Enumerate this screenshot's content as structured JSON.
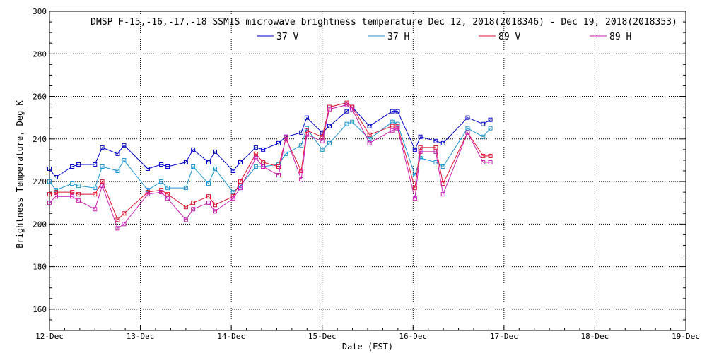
{
  "chart_data": {
    "type": "line",
    "title": "DMSP F-15,-16,-17,-18 SSMIS microwave brightness temperature Dec 12, 2018(2018346) - Dec 19, 2018(2018353)",
    "xlabel": "Date (EST)",
    "ylabel": "Brightness Temperature, Deg K",
    "x_ticks": [
      "12-Dec",
      "13-Dec",
      "14-Dec",
      "15-Dec",
      "16-Dec",
      "17-Dec",
      "18-Dec",
      "19-Dec"
    ],
    "xlim": [
      0,
      7
    ],
    "ylim": [
      150,
      300
    ],
    "y_ticks": [
      160,
      180,
      200,
      220,
      240,
      260,
      280,
      300
    ],
    "grid": true,
    "legend_position": "top-center",
    "series": [
      {
        "name": "37 V",
        "color": "#0000c8",
        "points": [
          [
            0.0,
            226
          ],
          [
            0.07,
            222
          ],
          [
            0.25,
            227
          ],
          [
            0.32,
            228
          ],
          [
            0.5,
            228
          ],
          [
            0.58,
            236
          ],
          [
            0.75,
            233
          ],
          [
            0.82,
            237
          ],
          [
            1.08,
            226
          ],
          [
            1.23,
            228
          ],
          [
            1.3,
            227
          ],
          [
            1.5,
            229
          ],
          [
            1.58,
            235
          ],
          [
            1.75,
            229
          ],
          [
            1.82,
            234
          ],
          [
            2.02,
            225
          ],
          [
            2.1,
            229
          ],
          [
            2.27,
            236
          ],
          [
            2.35,
            235
          ],
          [
            2.52,
            238
          ],
          [
            2.6,
            241
          ],
          [
            2.77,
            243
          ],
          [
            2.83,
            250
          ],
          [
            3.0,
            243
          ],
          [
            3.08,
            246
          ],
          [
            3.27,
            253
          ],
          [
            3.33,
            255
          ],
          [
            3.52,
            246
          ],
          [
            3.77,
            253
          ],
          [
            3.83,
            253
          ],
          [
            4.02,
            235
          ],
          [
            4.08,
            241
          ],
          [
            4.25,
            239
          ],
          [
            4.33,
            238
          ],
          [
            4.6,
            250
          ],
          [
            4.77,
            247
          ],
          [
            4.85,
            249
          ]
        ]
      },
      {
        "name": "37 H",
        "color": "#1e96d2",
        "points": [
          [
            0.0,
            220
          ],
          [
            0.07,
            216
          ],
          [
            0.25,
            219
          ],
          [
            0.32,
            218
          ],
          [
            0.5,
            217
          ],
          [
            0.58,
            227
          ],
          [
            0.75,
            225
          ],
          [
            0.82,
            230
          ],
          [
            1.08,
            216
          ],
          [
            1.23,
            220
          ],
          [
            1.3,
            217
          ],
          [
            1.5,
            217
          ],
          [
            1.58,
            227
          ],
          [
            1.75,
            219
          ],
          [
            1.82,
            226
          ],
          [
            2.02,
            215
          ],
          [
            2.1,
            218
          ],
          [
            2.27,
            227
          ],
          [
            2.35,
            227
          ],
          [
            2.52,
            228
          ],
          [
            2.6,
            233
          ],
          [
            2.77,
            237
          ],
          [
            2.83,
            245
          ],
          [
            3.0,
            235
          ],
          [
            3.08,
            238
          ],
          [
            3.27,
            247
          ],
          [
            3.33,
            248
          ],
          [
            3.52,
            240
          ],
          [
            3.77,
            248
          ],
          [
            3.83,
            247
          ],
          [
            4.02,
            223
          ],
          [
            4.08,
            231
          ],
          [
            4.25,
            229
          ],
          [
            4.33,
            227
          ],
          [
            4.6,
            245
          ],
          [
            4.77,
            241
          ],
          [
            4.85,
            245
          ]
        ]
      },
      {
        "name": "89 V",
        "color": "#dc1432",
        "points": [
          [
            0.0,
            214
          ],
          [
            0.07,
            215
          ],
          [
            0.25,
            215
          ],
          [
            0.32,
            214
          ],
          [
            0.5,
            214
          ],
          [
            0.58,
            220
          ],
          [
            0.75,
            202
          ],
          [
            0.82,
            205
          ],
          [
            1.08,
            215
          ],
          [
            1.23,
            216
          ],
          [
            1.3,
            214
          ],
          [
            1.5,
            208
          ],
          [
            1.58,
            210
          ],
          [
            1.75,
            213
          ],
          [
            1.82,
            209
          ],
          [
            2.02,
            213
          ],
          [
            2.1,
            220
          ],
          [
            2.27,
            233
          ],
          [
            2.35,
            229
          ],
          [
            2.52,
            227
          ],
          [
            2.6,
            240
          ],
          [
            2.77,
            225
          ],
          [
            2.83,
            244
          ],
          [
            3.0,
            241
          ],
          [
            3.08,
            255
          ],
          [
            3.27,
            257
          ],
          [
            3.33,
            255
          ],
          [
            3.52,
            242
          ],
          [
            3.77,
            246
          ],
          [
            3.83,
            246
          ],
          [
            4.02,
            217
          ],
          [
            4.08,
            236
          ],
          [
            4.25,
            236
          ],
          [
            4.33,
            219
          ],
          [
            4.6,
            243
          ],
          [
            4.77,
            232
          ],
          [
            4.85,
            232
          ]
        ]
      },
      {
        "name": "89 H",
        "color": "#c81eb4",
        "points": [
          [
            0.0,
            210
          ],
          [
            0.07,
            213
          ],
          [
            0.25,
            213
          ],
          [
            0.32,
            211
          ],
          [
            0.5,
            207
          ],
          [
            0.58,
            218
          ],
          [
            0.75,
            198
          ],
          [
            0.82,
            200
          ],
          [
            1.08,
            214
          ],
          [
            1.23,
            215
          ],
          [
            1.3,
            212
          ],
          [
            1.5,
            202
          ],
          [
            1.58,
            207
          ],
          [
            1.75,
            210
          ],
          [
            1.82,
            206
          ],
          [
            2.02,
            212
          ],
          [
            2.1,
            217
          ],
          [
            2.27,
            231
          ],
          [
            2.35,
            227
          ],
          [
            2.52,
            223
          ],
          [
            2.6,
            241
          ],
          [
            2.77,
            221
          ],
          [
            2.83,
            242
          ],
          [
            3.0,
            239
          ],
          [
            3.08,
            254
          ],
          [
            3.27,
            256
          ],
          [
            3.33,
            254
          ],
          [
            3.52,
            238
          ],
          [
            3.77,
            244
          ],
          [
            3.83,
            245
          ],
          [
            4.02,
            212
          ],
          [
            4.08,
            234
          ],
          [
            4.25,
            234
          ],
          [
            4.33,
            214
          ],
          [
            4.6,
            243
          ],
          [
            4.77,
            229
          ],
          [
            4.85,
            229
          ]
        ]
      }
    ]
  }
}
